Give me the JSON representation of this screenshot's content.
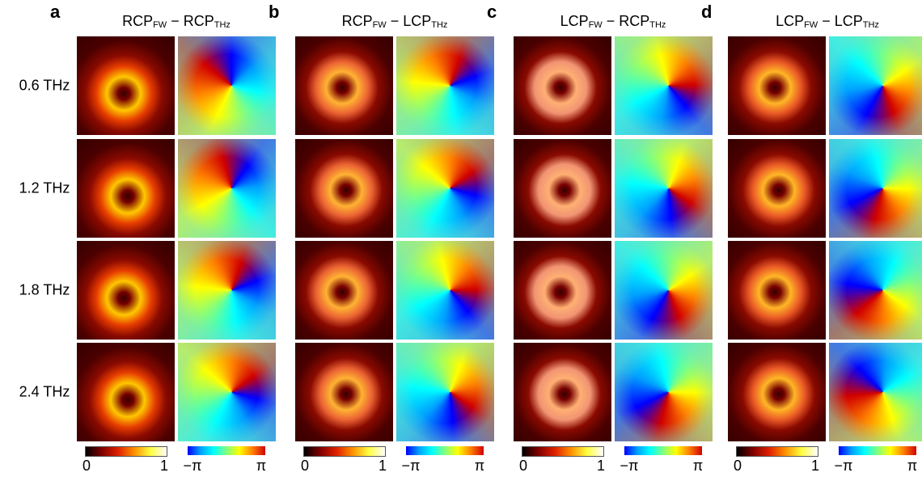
{
  "panels": [
    {
      "letter": "a",
      "title": {
        "pump": "RCP",
        "pump_sub": "FW",
        "sep": "−",
        "probe": "RCP",
        "probe_sub": "THz"
      }
    },
    {
      "letter": "b",
      "title": {
        "pump": "RCP",
        "pump_sub": "FW",
        "sep": "−",
        "probe": "LCP",
        "probe_sub": "THz"
      }
    },
    {
      "letter": "c",
      "title": {
        "pump": "LCP",
        "pump_sub": "FW",
        "sep": "−",
        "probe": "RCP",
        "probe_sub": "THz"
      }
    },
    {
      "letter": "d",
      "title": {
        "pump": "LCP",
        "pump_sub": "FW",
        "sep": "−",
        "probe": "LCP",
        "probe_sub": "THz"
      }
    }
  ],
  "rows": [
    "0.6 THz",
    "1.2 THz",
    "1.8 THz",
    "2.4 THz"
  ],
  "colorbars": {
    "intensity": [
      "0",
      "1"
    ],
    "phase": [
      "−π",
      "π"
    ]
  }
}
